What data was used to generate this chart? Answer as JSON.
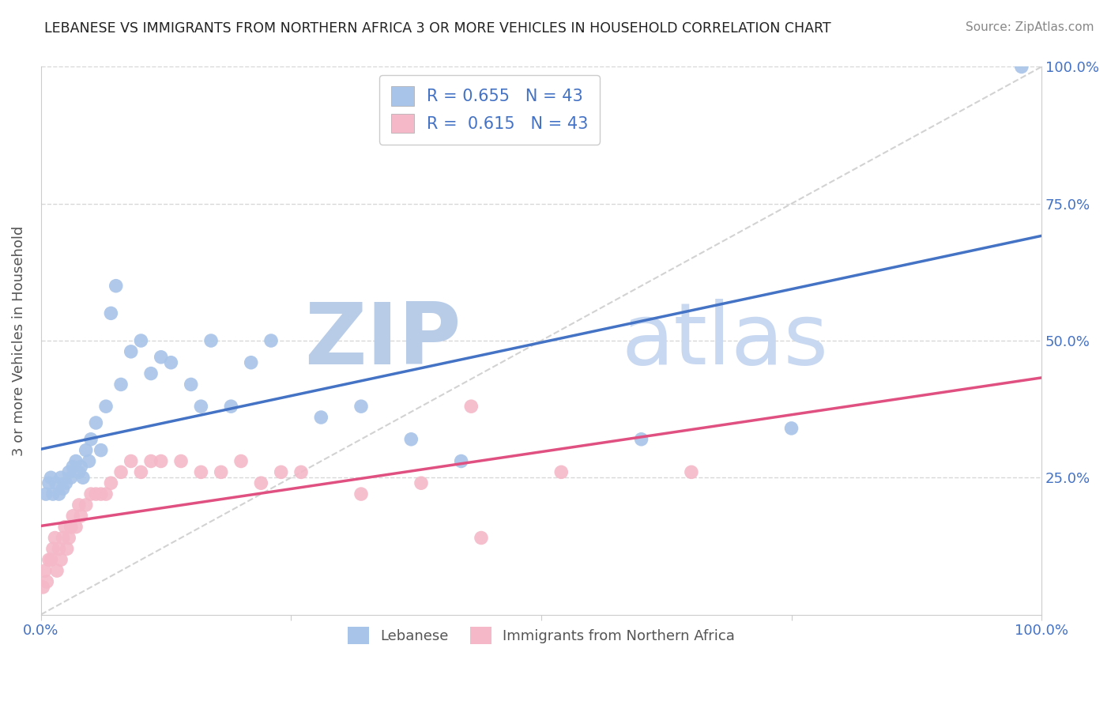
{
  "title": "LEBANESE VS IMMIGRANTS FROM NORTHERN AFRICA 3 OR MORE VEHICLES IN HOUSEHOLD CORRELATION CHART",
  "source": "Source: ZipAtlas.com",
  "ylabel": "3 or more Vehicles in Household",
  "xlim": [
    0.0,
    1.0
  ],
  "ylim": [
    0.0,
    1.0
  ],
  "R_blue": 0.655,
  "N_blue": 43,
  "R_pink": 0.615,
  "N_pink": 43,
  "blue_color": "#a8c4e8",
  "pink_color": "#f4b8c8",
  "line_blue": "#4472c4",
  "line_pink": "#e05080",
  "diagonal_color": "#c0c0c0",
  "grid_color": "#d8d8d8",
  "watermark_zip": "ZIP",
  "watermark_atlas": "atlas",
  "watermark_color": "#c8d8f0",
  "title_color": "#222222",
  "axis_label_color": "#555555",
  "tick_label_color": "#4472c4",
  "legend_color": "#4472c4",
  "blue_x": [
    0.005,
    0.008,
    0.01,
    0.012,
    0.015,
    0.018,
    0.02,
    0.022,
    0.025,
    0.028,
    0.03,
    0.032,
    0.035,
    0.038,
    0.04,
    0.042,
    0.045,
    0.048,
    0.05,
    0.055,
    0.06,
    0.065,
    0.07,
    0.075,
    0.08,
    0.09,
    0.1,
    0.11,
    0.12,
    0.13,
    0.15,
    0.16,
    0.17,
    0.19,
    0.21,
    0.23,
    0.28,
    0.32,
    0.37,
    0.42,
    0.6,
    0.75,
    0.98
  ],
  "blue_y": [
    0.22,
    0.24,
    0.25,
    0.22,
    0.24,
    0.22,
    0.25,
    0.23,
    0.24,
    0.26,
    0.25,
    0.27,
    0.28,
    0.26,
    0.27,
    0.25,
    0.3,
    0.28,
    0.32,
    0.35,
    0.3,
    0.38,
    0.55,
    0.6,
    0.42,
    0.48,
    0.5,
    0.44,
    0.47,
    0.46,
    0.42,
    0.38,
    0.5,
    0.38,
    0.46,
    0.5,
    0.36,
    0.38,
    0.32,
    0.28,
    0.32,
    0.34,
    1.0
  ],
  "pink_x": [
    0.002,
    0.004,
    0.006,
    0.008,
    0.01,
    0.012,
    0.014,
    0.016,
    0.018,
    0.02,
    0.022,
    0.024,
    0.026,
    0.028,
    0.03,
    0.032,
    0.035,
    0.038,
    0.04,
    0.045,
    0.05,
    0.055,
    0.06,
    0.065,
    0.07,
    0.08,
    0.09,
    0.1,
    0.11,
    0.12,
    0.14,
    0.16,
    0.18,
    0.2,
    0.22,
    0.24,
    0.26,
    0.32,
    0.38,
    0.43,
    0.44,
    0.52,
    0.65
  ],
  "pink_y": [
    0.05,
    0.08,
    0.06,
    0.1,
    0.1,
    0.12,
    0.14,
    0.08,
    0.12,
    0.1,
    0.14,
    0.16,
    0.12,
    0.14,
    0.16,
    0.18,
    0.16,
    0.2,
    0.18,
    0.2,
    0.22,
    0.22,
    0.22,
    0.22,
    0.24,
    0.26,
    0.28,
    0.26,
    0.28,
    0.28,
    0.28,
    0.26,
    0.26,
    0.28,
    0.24,
    0.26,
    0.26,
    0.22,
    0.24,
    0.38,
    0.14,
    0.26,
    0.26
  ]
}
